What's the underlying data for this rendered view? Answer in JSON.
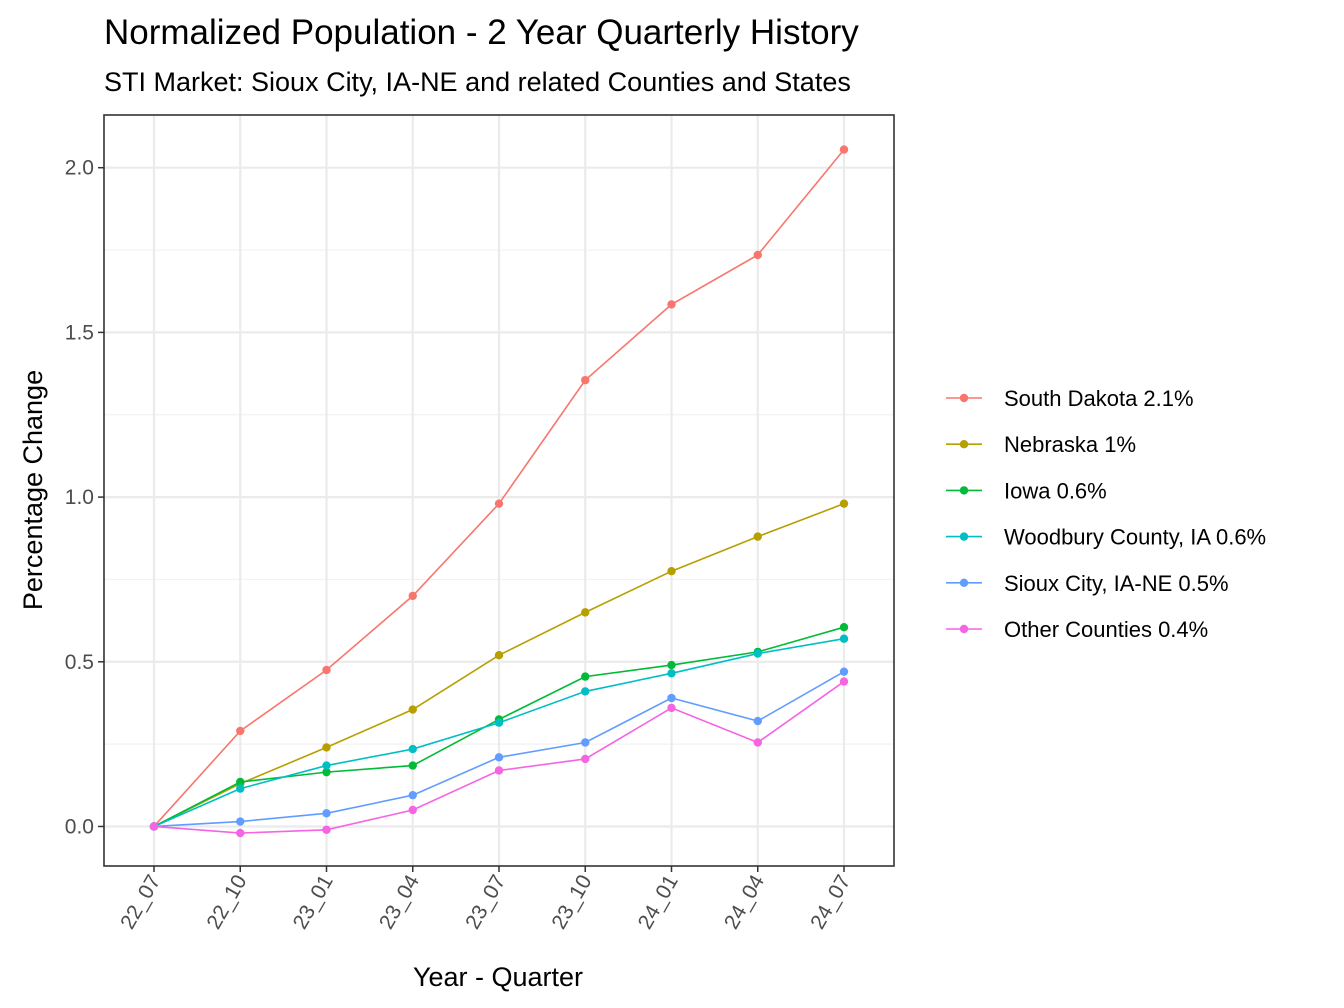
{
  "chart_data": {
    "type": "line",
    "title": "Normalized Population - 2 Year Quarterly History",
    "subtitle": "STI Market: Sioux City, IA-NE and related Counties and States",
    "xlabel": "Year - Quarter",
    "ylabel": "Percentage Change",
    "categories": [
      "22_07",
      "22_10",
      "23_01",
      "23_04",
      "23_07",
      "23_10",
      "24_01",
      "24_04",
      "24_07"
    ],
    "ylim": [
      -0.12,
      2.16
    ],
    "yticks": [
      0.0,
      0.5,
      1.0,
      1.5,
      2.0
    ],
    "ytick_labels": [
      "0.0",
      "0.5",
      "1.0",
      "1.5",
      "2.0"
    ],
    "grid": true,
    "legend_position": "right",
    "series": [
      {
        "name": "South Dakota 2.1%",
        "color": "#F8766D",
        "values": [
          0.0,
          0.29,
          0.475,
          0.7,
          0.98,
          1.355,
          1.585,
          1.735,
          2.055
        ]
      },
      {
        "name": "Nebraska 1%",
        "color": "#B79F00",
        "values": [
          0.0,
          0.13,
          0.24,
          0.355,
          0.52,
          0.65,
          0.775,
          0.88,
          0.98
        ]
      },
      {
        "name": "Iowa 0.6%",
        "color": "#00BA38",
        "values": [
          0.0,
          0.135,
          0.165,
          0.185,
          0.325,
          0.455,
          0.49,
          0.53,
          0.605
        ]
      },
      {
        "name": "Woodbury County, IA 0.6%",
        "color": "#00BFC4",
        "values": [
          0.0,
          0.115,
          0.185,
          0.235,
          0.315,
          0.41,
          0.465,
          0.525,
          0.57
        ]
      },
      {
        "name": "Sioux City, IA-NE 0.5%",
        "color": "#619CFF",
        "values": [
          0.0,
          0.015,
          0.04,
          0.095,
          0.21,
          0.255,
          0.39,
          0.32,
          0.47
        ]
      },
      {
        "name": "Other Counties 0.4%",
        "color": "#F564E3",
        "values": [
          0.0,
          -0.02,
          -0.01,
          0.05,
          0.17,
          0.205,
          0.36,
          0.255,
          0.44
        ]
      }
    ]
  }
}
